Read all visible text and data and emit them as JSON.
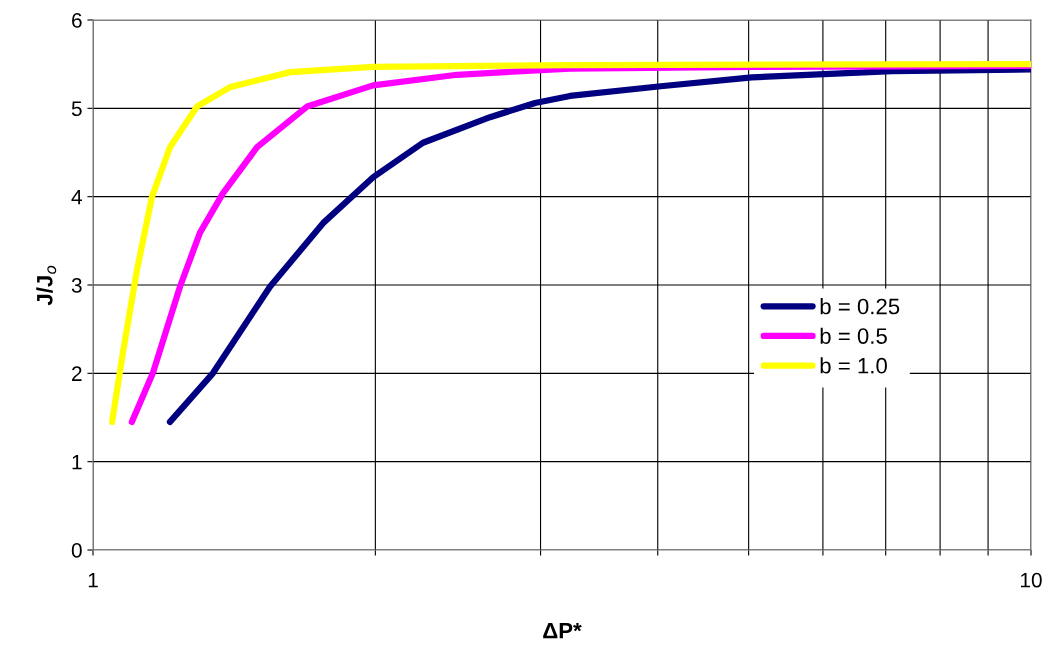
{
  "chart_data": {
    "type": "line",
    "xlabel": "ΔP*",
    "ylabel": "J/J$_{o}$",
    "log": "x",
    "xlim": [
      1,
      10
    ],
    "ylim": [
      0,
      6
    ],
    "xticks": [
      1,
      {
        "value": 2,
        "label": null
      },
      {
        "value": 3,
        "label": null
      },
      {
        "value": 4,
        "label": null
      },
      {
        "value": 5,
        "label": null
      },
      {
        "value": 6,
        "label": null
      },
      {
        "value": 7,
        "label": null
      },
      {
        "value": 8,
        "label": null
      },
      {
        "value": 9,
        "label": null
      },
      10
    ],
    "yticks": [
      0,
      1,
      2,
      3,
      4,
      5,
      6
    ],
    "grid": true,
    "legend": "center right",
    "marker": "none",
    "line_style": "solid",
    "series": [
      {
        "name": "b = 0.25",
        "color": "#000080",
        "x": [
          1.208,
          1.342,
          1.544,
          1.759,
          1.989,
          2.248,
          2.65,
          2.96,
          3.225,
          4.03,
          5.04,
          7.11,
          10
        ],
        "values": [
          1.45,
          2.0,
          2.98,
          3.7,
          4.22,
          4.61,
          4.9,
          5.06,
          5.14,
          5.25,
          5.35,
          5.42,
          5.44
        ]
      },
      {
        "name": "b = 0.5",
        "color": "#ff00ff",
        "x": [
          1.1,
          1.158,
          1.238,
          1.3,
          1.376,
          1.496,
          1.691,
          1.989,
          2.444,
          3.225,
          5.04,
          10
        ],
        "values": [
          1.45,
          2.0,
          2.98,
          3.59,
          4.04,
          4.56,
          5.02,
          5.26,
          5.38,
          5.45,
          5.47,
          5.48
        ]
      },
      {
        "name": "b = 1.0",
        "color": "#ffff00",
        "x": [
          1.048,
          1.076,
          1.114,
          1.156,
          1.208,
          1.291,
          1.4,
          1.622,
          1.989,
          3.225,
          10
        ],
        "values": [
          1.45,
          2.23,
          3.17,
          4.0,
          4.56,
          5.02,
          5.24,
          5.41,
          5.47,
          5.49,
          5.5
        ]
      }
    ]
  }
}
